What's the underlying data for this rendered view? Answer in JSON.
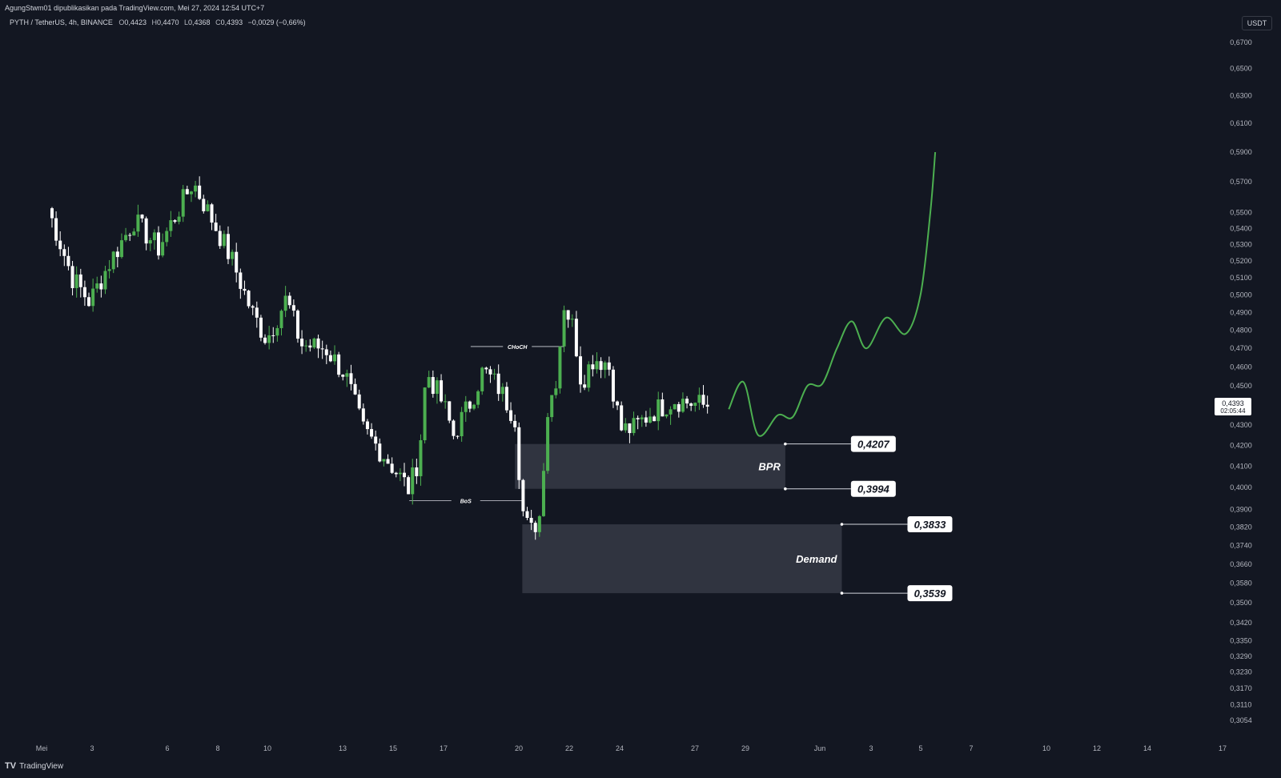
{
  "header": {
    "publish_line": "AgungStwm01 dipublikasikan pada TradingView.com, Mei 27, 2024 12:54 UTC+7",
    "symbol": "PYTH / TetherUS, 4h, BINANCE",
    "open_label": "O",
    "open_value": "0,4423",
    "high_label": "H",
    "high_value": "0,4470",
    "low_label": "L",
    "low_value": "0,4368",
    "close_label": "C",
    "close_value": "0,4393",
    "change": "−0,0029 (−0,66%)"
  },
  "currency_button": "USDT",
  "footer": {
    "logo": "TV",
    "brand": "TradingView"
  },
  "colors": {
    "background": "#131722",
    "up_candle": "#4caf50",
    "down_candle": "#ffffff",
    "zone": "#363a45",
    "projection": "#4caf50",
    "axis_text": "#b2b5be"
  },
  "chart_data": {
    "type": "candlestick",
    "timeframe": "4h",
    "y_scale": "log",
    "ylim": [
      0.3054,
      0.68
    ],
    "y_ticks": [
      "0,6700",
      "0,6500",
      "0,6300",
      "0,6100",
      "0,5900",
      "0,5700",
      "0,5500",
      "0,5400",
      "0,5300",
      "0,5200",
      "0,5100",
      "0,5000",
      "0,4900",
      "0,4800",
      "0,4700",
      "0,4600",
      "0,4500",
      "0,4300",
      "0,4200",
      "0,4100",
      "0,4000",
      "0,3900",
      "0,3820",
      "0,3740",
      "0,3660",
      "0,3580",
      "0,3500",
      "0,3420",
      "0,3350",
      "0,3290",
      "0,3230",
      "0,3170",
      "0,3110",
      "0,3054"
    ],
    "x_ticks": [
      "Mei",
      "3",
      "6",
      "8",
      "10",
      "13",
      "15",
      "17",
      "20",
      "22",
      "24",
      "27",
      "29",
      "Jun",
      "3",
      "5",
      "7",
      "10",
      "12",
      "14",
      "17"
    ],
    "last_price": "0,4393",
    "countdown": "02:05:44",
    "anchors": [
      {
        "day": 0.5,
        "price": 0.553
      },
      {
        "day": 1.5,
        "price": 0.51
      },
      {
        "day": 2.2,
        "price": 0.496
      },
      {
        "day": 3.0,
        "price": 0.519
      },
      {
        "day": 4.0,
        "price": 0.545
      },
      {
        "day": 5.0,
        "price": 0.528
      },
      {
        "day": 6.4,
        "price": 0.57
      },
      {
        "day": 7.2,
        "price": 0.545
      },
      {
        "day": 8.0,
        "price": 0.52
      },
      {
        "day": 8.8,
        "price": 0.49
      },
      {
        "day": 9.4,
        "price": 0.475
      },
      {
        "day": 10.2,
        "price": 0.498
      },
      {
        "day": 10.8,
        "price": 0.472
      },
      {
        "day": 11.8,
        "price": 0.47
      },
      {
        "day": 12.6,
        "price": 0.456
      },
      {
        "day": 13.3,
        "price": 0.428
      },
      {
        "day": 14.2,
        "price": 0.415
      },
      {
        "day": 15.2,
        "price": 0.399
      },
      {
        "day": 15.6,
        "price": 0.415
      },
      {
        "day": 15.9,
        "price": 0.458
      },
      {
        "day": 16.6,
        "price": 0.44
      },
      {
        "day": 17.0,
        "price": 0.425
      },
      {
        "day": 17.7,
        "price": 0.442
      },
      {
        "day": 18.2,
        "price": 0.458
      },
      {
        "day": 18.8,
        "price": 0.45
      },
      {
        "day": 19.5,
        "price": 0.434
      },
      {
        "day": 19.8,
        "price": 0.39
      },
      {
        "day": 20.1,
        "price": 0.379
      },
      {
        "day": 20.5,
        "price": 0.387
      },
      {
        "day": 20.8,
        "price": 0.435
      },
      {
        "day": 21.2,
        "price": 0.456
      },
      {
        "day": 21.5,
        "price": 0.495
      },
      {
        "day": 21.9,
        "price": 0.48
      },
      {
        "day": 22.2,
        "price": 0.452
      },
      {
        "day": 22.7,
        "price": 0.465
      },
      {
        "day": 23.3,
        "price": 0.462
      },
      {
        "day": 23.8,
        "price": 0.428
      },
      {
        "day": 24.3,
        "price": 0.428
      },
      {
        "day": 25.0,
        "price": 0.436
      },
      {
        "day": 26.0,
        "price": 0.443
      },
      {
        "day": 27.4,
        "price": 0.4393
      }
    ],
    "zones": [
      {
        "label": "BPR",
        "top": 0.4207,
        "bottom": 0.3994,
        "top_label": "0,4207",
        "bottom_label": "0,3994",
        "from_day": 19.5,
        "to_day": 30.5
      },
      {
        "label": "Demand",
        "top": 0.3833,
        "bottom": 0.3539,
        "top_label": "0,3833",
        "bottom_label": "0,3539",
        "from_day": 19.8,
        "to_day": 32.8
      }
    ],
    "structure_labels": [
      {
        "label": "CHoCH",
        "day_from": 17.7,
        "day_to": 21.5,
        "price": 0.471
      },
      {
        "label": "BoS",
        "day_from": 15.2,
        "day_to": 19.8,
        "price": 0.394
      }
    ],
    "projection": [
      {
        "day": 28.2,
        "price": 0.438
      },
      {
        "day": 28.8,
        "price": 0.452
      },
      {
        "day": 29.4,
        "price": 0.425
      },
      {
        "day": 30.2,
        "price": 0.435
      },
      {
        "day": 30.8,
        "price": 0.434
      },
      {
        "day": 31.4,
        "price": 0.45
      },
      {
        "day": 32.0,
        "price": 0.451
      },
      {
        "day": 32.6,
        "price": 0.47
      },
      {
        "day": 33.2,
        "price": 0.485
      },
      {
        "day": 33.8,
        "price": 0.47
      },
      {
        "day": 34.6,
        "price": 0.487
      },
      {
        "day": 35.4,
        "price": 0.478
      },
      {
        "day": 36.0,
        "price": 0.5
      },
      {
        "day": 36.4,
        "price": 0.55
      },
      {
        "day": 36.6,
        "price": 0.59
      }
    ]
  }
}
